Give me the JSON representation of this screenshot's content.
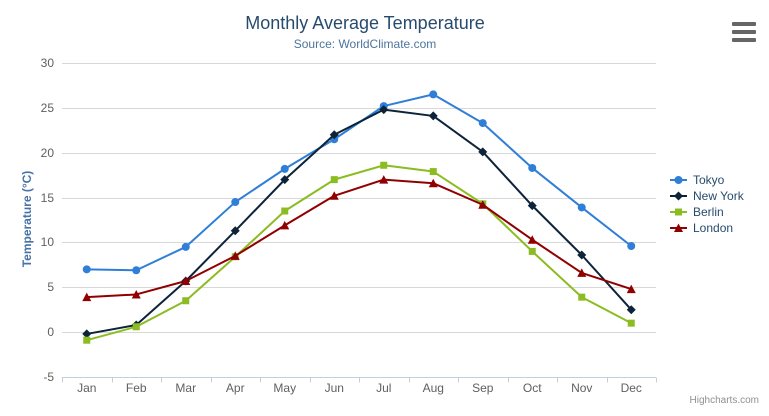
{
  "chart": {
    "title": "Monthly Average Temperature",
    "subtitle": "Source: WorldClimate.com",
    "credits": "Highcharts.com"
  },
  "icons": {
    "export_menu": "hamburger-icon"
  },
  "colors": {
    "title_text": "#274b6d",
    "subtitle_text": "#4d759e",
    "axis_label": "#606060",
    "yaxis_title": "#4572a7",
    "legend_text": "#274b6d",
    "gridline": "#d8d8d8",
    "axis_line": "#c0d0e0",
    "credits_text": "#909090"
  },
  "chart_data": {
    "type": "line",
    "title": "Monthly Average Temperature",
    "subtitle": "Source: WorldClimate.com",
    "xlabel": "",
    "ylabel": "Temperature (°C)",
    "categories": [
      "Jan",
      "Feb",
      "Mar",
      "Apr",
      "May",
      "Jun",
      "Jul",
      "Aug",
      "Sep",
      "Oct",
      "Nov",
      "Dec"
    ],
    "series": [
      {
        "name": "Tokyo",
        "color": "#2f7ed8",
        "marker": "circle",
        "values": [
          7.0,
          6.9,
          9.5,
          14.5,
          18.2,
          21.5,
          25.2,
          26.5,
          23.3,
          18.3,
          13.9,
          9.6
        ]
      },
      {
        "name": "New York",
        "color": "#0d233a",
        "marker": "diamond",
        "values": [
          -0.2,
          0.8,
          5.7,
          11.3,
          17.0,
          22.0,
          24.8,
          24.1,
          20.1,
          14.1,
          8.6,
          2.5
        ]
      },
      {
        "name": "Berlin",
        "color": "#8bbc21",
        "marker": "square",
        "values": [
          -0.9,
          0.6,
          3.5,
          8.4,
          13.5,
          17.0,
          18.6,
          17.9,
          14.3,
          9.0,
          3.9,
          1.0
        ]
      },
      {
        "name": "London",
        "color": "#910000",
        "marker": "triangle",
        "values": [
          3.9,
          4.2,
          5.7,
          8.5,
          11.9,
          15.2,
          17.0,
          16.6,
          14.2,
          10.3,
          6.6,
          4.8
        ]
      }
    ],
    "ylim": [
      -5,
      30
    ],
    "ytick_interval": 5,
    "grid": true,
    "legend_position": "right"
  }
}
